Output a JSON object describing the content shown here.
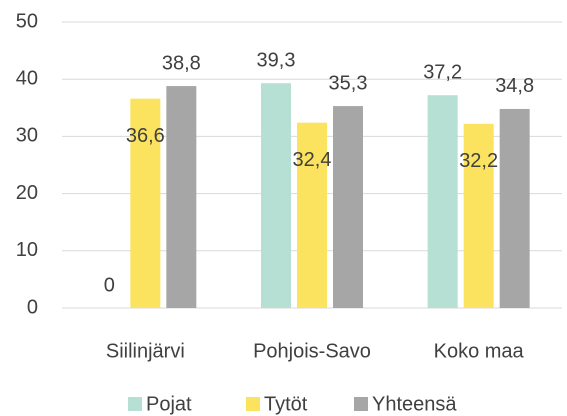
{
  "chart_data": {
    "type": "bar",
    "categories": [
      "Siilinjärvi",
      "Pohjois-Savo",
      "Koko maa"
    ],
    "series": [
      {
        "name": "Pojat",
        "color": "#b5e0d3",
        "values": [
          0,
          39.3,
          37.2
        ],
        "value_labels": [
          "0",
          "39,3",
          "37,2"
        ]
      },
      {
        "name": "Tytöt",
        "color": "#fce35f",
        "values": [
          36.6,
          32.4,
          32.2
        ],
        "value_labels": [
          "36,6",
          "32,4",
          "32,2"
        ]
      },
      {
        "name": "Yhteensä",
        "color": "#a6a6a6",
        "values": [
          38.8,
          35.3,
          34.8
        ],
        "value_labels": [
          "38,8",
          "35,3",
          "34,8"
        ]
      }
    ],
    "ylim": [
      0,
      50
    ],
    "yticks": [
      0,
      10,
      20,
      30,
      40,
      50
    ],
    "grid": true,
    "legend": "bottom"
  }
}
